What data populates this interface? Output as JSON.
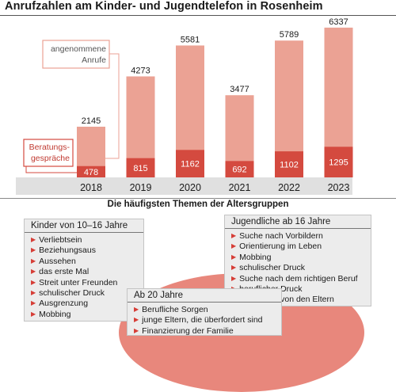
{
  "title": "Anrufzahlen am Kinder- und Jugendtelefon in Rosenheim",
  "chart_data": {
    "type": "bar",
    "categories": [
      "2018",
      "2019",
      "2020",
      "2021",
      "2022",
      "2023"
    ],
    "series": [
      {
        "name": "angenommene Anrufe",
        "values": [
          2145,
          4273,
          5581,
          3477,
          5789,
          6337
        ]
      },
      {
        "name": "Beratungsgespräche",
        "values": [
          478,
          815,
          1162,
          692,
          1102,
          1295
        ]
      }
    ],
    "ylim": [
      0,
      6400
    ],
    "colors": {
      "total": "#eba294",
      "consult": "#d44a3f",
      "axis_band": "#e0e0e0",
      "label_border": "#d44a3f"
    }
  },
  "themes": {
    "title": "Die häufigsten Themen der Altersgruppen",
    "kids": {
      "title": "Kinder von 10–16 Jahre",
      "items": [
        "Verliebtsein",
        "Beziehungsaus",
        "Aussehen",
        "das erste Mal",
        "Streit unter Freunden",
        "schulischer Druck",
        "Ausgrenzung",
        "Mobbing"
      ]
    },
    "teens": {
      "title": "Jugendliche ab 16 Jahre",
      "items": [
        "Suche nach Vorbildern",
        "Orientierung im Leben",
        "Mobbing",
        "schulischer Druck",
        "Suche nach dem richtigen Beruf",
        "beruflicher Druck",
        "Abkapseln von den Eltern"
      ]
    },
    "adults": {
      "title": "Ab 20 Jahre",
      "items": [
        "Berufliche Sorgen",
        "junge Eltern, die überfordert sind",
        "Finanzierung der Familie"
      ]
    }
  },
  "bullet_icon": "triangle-right-icon"
}
